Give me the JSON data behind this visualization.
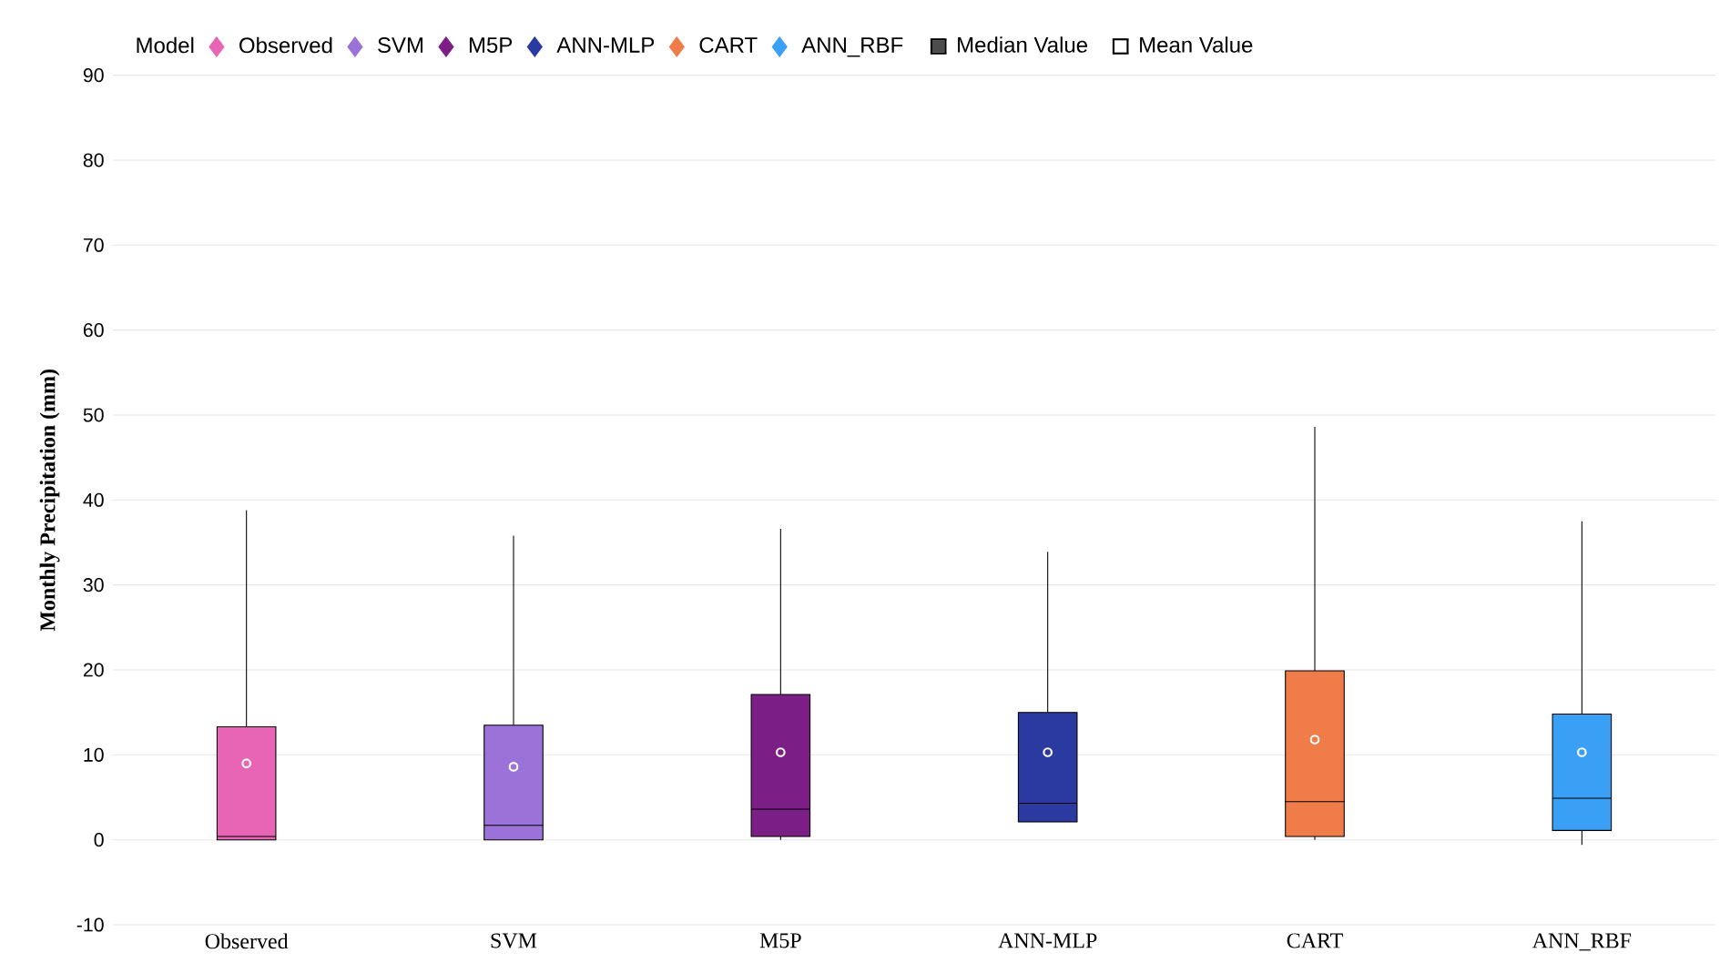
{
  "chart_data": {
    "type": "box",
    "ylabel": "Monthly Precipitation (mm)",
    "legend_title": "Model",
    "legend": "top left",
    "grid": "y",
    "categories": [
      "Observed",
      "SVM",
      "M5P",
      "ANN-MLP",
      "CART",
      "ANN_RBF"
    ],
    "ylim": [
      -10,
      90
    ],
    "yticks": [
      -10,
      0,
      10,
      20,
      30,
      40,
      50,
      60,
      70,
      80,
      90
    ],
    "series": [
      {
        "name": "Observed",
        "color": "#e864b4",
        "boxes": [
          {
            "low": 0,
            "q1": 0,
            "median": 0.4,
            "q3": 13.3,
            "high": 38.8,
            "mean": 9
          },
          null,
          null,
          null,
          null,
          null
        ]
      },
      {
        "name": "SVM",
        "color": "#9b72d8",
        "boxes": [
          null,
          {
            "low": 0,
            "q1": 0,
            "median": 1.7,
            "q3": 13.5,
            "high": 35.8,
            "mean": 8.6
          },
          null,
          null,
          null,
          null
        ]
      },
      {
        "name": "M5P",
        "color": "#7b1f86",
        "boxes": [
          null,
          null,
          {
            "low": 0,
            "q1": 0.4,
            "median": 3.6,
            "q3": 17.1,
            "high": 36.6,
            "mean": 10.3
          },
          null,
          null,
          null
        ]
      },
      {
        "name": "ANN-MLP",
        "color": "#2b3aa0",
        "boxes": [
          null,
          null,
          null,
          {
            "low": 2.1,
            "q1": 2.1,
            "median": 4.3,
            "q3": 15,
            "high": 33.9,
            "mean": 10.3
          },
          null,
          null
        ]
      },
      {
        "name": "CART",
        "color": "#f07c4a",
        "boxes": [
          null,
          null,
          null,
          null,
          {
            "low": 0,
            "q1": 0.4,
            "median": 4.5,
            "q3": 19.9,
            "high": 48.6,
            "mean": 11.8
          },
          null
        ]
      },
      {
        "name": "ANN_RBF",
        "color": "#3aa0f5",
        "boxes": [
          null,
          null,
          null,
          null,
          null,
          {
            "low": -0.6,
            "q1": 1.1,
            "median": 4.9,
            "q3": 14.8,
            "high": 37.5,
            "mean": 10.3
          }
        ]
      }
    ],
    "annotations": [
      "Median Value",
      "Mean Value"
    ]
  }
}
